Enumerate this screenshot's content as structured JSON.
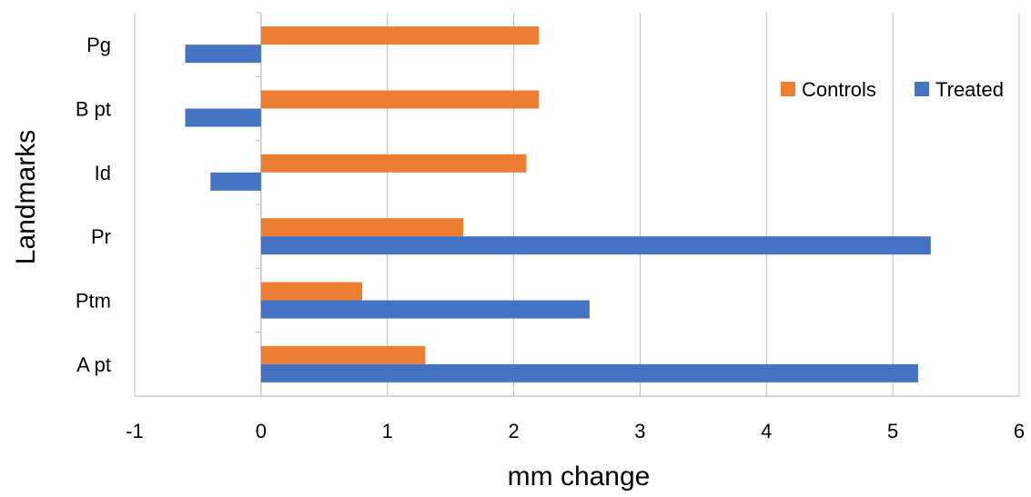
{
  "chart_data": {
    "type": "bar",
    "orientation": "horizontal",
    "categories": [
      "A pt",
      "Ptm",
      "Pr",
      "Id",
      "B pt",
      "Pg"
    ],
    "series": [
      {
        "name": "Controls",
        "color": "#ED7D31",
        "values": [
          1.3,
          0.8,
          1.6,
          2.1,
          2.2,
          2.2
        ]
      },
      {
        "name": "Treated",
        "color": "#4472C4",
        "values": [
          5.2,
          2.6,
          5.3,
          -0.4,
          -0.6,
          -0.6
        ]
      }
    ],
    "xlabel": "mm change",
    "ylabel": "Landmarks",
    "xlim": [
      -1,
      6
    ],
    "xticks": [
      "-1",
      "0",
      "1",
      "2",
      "3",
      "4",
      "5",
      "6"
    ],
    "grid": "vertical",
    "legend_position": "top-right"
  }
}
